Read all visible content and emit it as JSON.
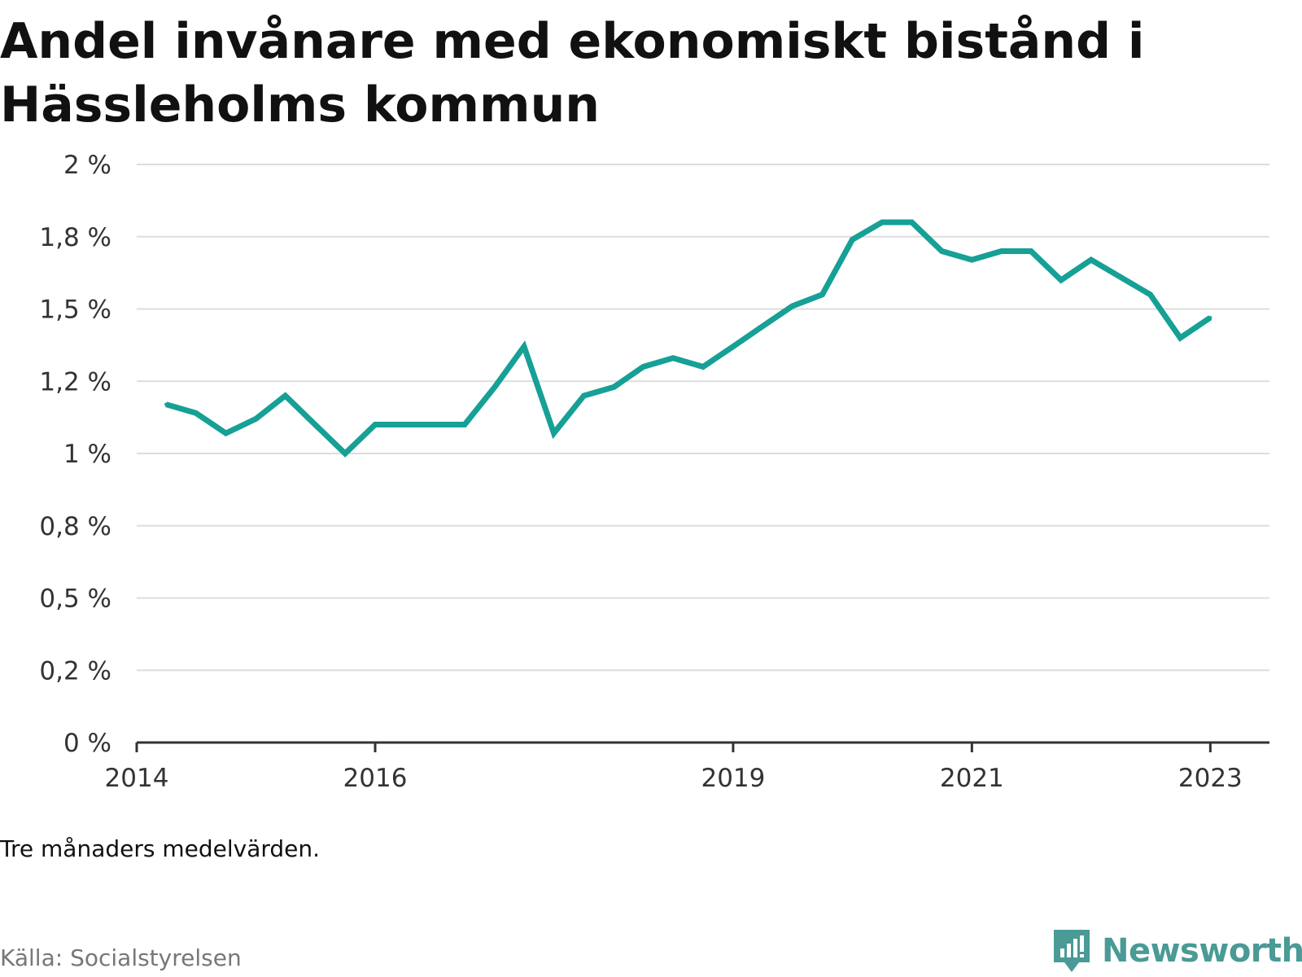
{
  "title": "Andel invånare med ekonomiskt bistånd i Hässleholms kommun",
  "note": "Tre månaders medelvärden.",
  "source": "Källa: Socialstyrelsen",
  "brand": "Newsworthy",
  "colors": {
    "line": "#16a096",
    "brand": "#4a9a95",
    "grid": "#dddddd",
    "axis": "#333333"
  },
  "icons": [
    "newsworthy-logo-icon"
  ],
  "chart_data": {
    "type": "line",
    "title": "Andel invånare med ekonomiskt bistånd i Hässleholms kommun",
    "xlabel": "",
    "ylabel": "",
    "grid": true,
    "ylim": [
      0,
      2
    ],
    "xlim": [
      "2014-01-01",
      "2023-07-01"
    ],
    "y_ticks": [
      {
        "value": 0,
        "label": "0 %"
      },
      {
        "value": 0.25,
        "label": "0,2 %"
      },
      {
        "value": 0.5,
        "label": "0,5 %"
      },
      {
        "value": 0.75,
        "label": "0,8 %"
      },
      {
        "value": 1.0,
        "label": "1 %"
      },
      {
        "value": 1.25,
        "label": "1,2 %"
      },
      {
        "value": 1.5,
        "label": "1,5 %"
      },
      {
        "value": 1.75,
        "label": "1,8 %"
      },
      {
        "value": 2.0,
        "label": "2 %"
      }
    ],
    "x_ticks": [
      {
        "date": "2014-01-01",
        "label": "2014"
      },
      {
        "date": "2016-01-01",
        "label": "2016"
      },
      {
        "date": "2019-01-01",
        "label": "2019"
      },
      {
        "date": "2021-01-01",
        "label": "2021"
      },
      {
        "date": "2023-01-01",
        "label": "2023"
      }
    ],
    "series": [
      {
        "points": [
          {
            "x": "2014-04-01",
            "y": 1.17
          },
          {
            "x": "2014-07-01",
            "y": 1.14
          },
          {
            "x": "2014-10-01",
            "y": 1.07
          },
          {
            "x": "2015-01-01",
            "y": 1.12
          },
          {
            "x": "2015-04-01",
            "y": 1.2
          },
          {
            "x": "2015-07-01",
            "y": 1.1
          },
          {
            "x": "2015-10-01",
            "y": 1.0
          },
          {
            "x": "2016-01-01",
            "y": 1.1
          },
          {
            "x": "2016-04-01",
            "y": 1.1
          },
          {
            "x": "2016-07-01",
            "y": 1.1
          },
          {
            "x": "2016-10-01",
            "y": 1.1
          },
          {
            "x": "2017-01-01",
            "y": 1.23
          },
          {
            "x": "2017-04-01",
            "y": 1.37
          },
          {
            "x": "2017-07-01",
            "y": 1.07
          },
          {
            "x": "2017-10-01",
            "y": 1.2
          },
          {
            "x": "2018-01-01",
            "y": 1.23
          },
          {
            "x": "2018-04-01",
            "y": 1.3
          },
          {
            "x": "2018-07-01",
            "y": 1.33
          },
          {
            "x": "2018-10-01",
            "y": 1.3
          },
          {
            "x": "2019-01-01",
            "y": 1.37
          },
          {
            "x": "2019-04-01",
            "y": 1.44
          },
          {
            "x": "2019-07-01",
            "y": 1.51
          },
          {
            "x": "2019-10-01",
            "y": 1.55
          },
          {
            "x": "2020-01-01",
            "y": 1.74
          },
          {
            "x": "2020-04-01",
            "y": 1.8
          },
          {
            "x": "2020-07-01",
            "y": 1.8
          },
          {
            "x": "2020-10-01",
            "y": 1.7
          },
          {
            "x": "2021-01-01",
            "y": 1.67
          },
          {
            "x": "2021-04-01",
            "y": 1.7
          },
          {
            "x": "2021-07-01",
            "y": 1.7
          },
          {
            "x": "2021-10-01",
            "y": 1.6
          },
          {
            "x": "2022-01-01",
            "y": 1.67
          },
          {
            "x": "2022-04-01",
            "y": 1.61
          },
          {
            "x": "2022-07-01",
            "y": 1.55
          },
          {
            "x": "2022-10-01",
            "y": 1.4
          },
          {
            "x": "2023-01-01",
            "y": 1.47
          }
        ]
      }
    ]
  }
}
